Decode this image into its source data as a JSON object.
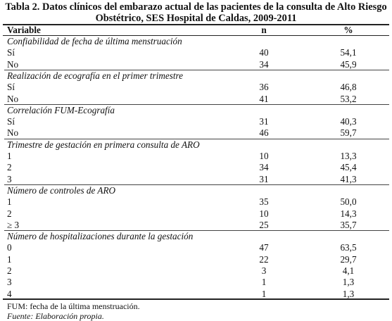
{
  "caption": {
    "line1": "Tabla 2. Datos clínicos del embarazo actual de las pacientes de la consulta de Alto Riesgo",
    "line2": "Obstétrico, SES Hospital de Caldas, 2009-2011"
  },
  "header": {
    "variable": "Variable",
    "n": "n",
    "pct": "%"
  },
  "sections": [
    {
      "title": "Confiabilidad de fecha de última menstruación",
      "rows": [
        {
          "label": "Sí",
          "n": "40",
          "pct": "54,1"
        },
        {
          "label": "No",
          "n": "34",
          "pct": "45,9"
        }
      ]
    },
    {
      "title": "Realización de ecografía en el primer trimestre",
      "rows": [
        {
          "label": "Sí",
          "n": "36",
          "pct": "46,8"
        },
        {
          "label": "No",
          "n": "41",
          "pct": "53,2"
        }
      ]
    },
    {
      "title": "Correlación FUM-Ecografía",
      "rows": [
        {
          "label": "Sí",
          "n": "31",
          "pct": "40,3"
        },
        {
          "label": "No",
          "n": "46",
          "pct": "59,7"
        }
      ]
    },
    {
      "title": "Trimestre de gestación en primera consulta de ARO",
      "rows": [
        {
          "label": "1",
          "n": "10",
          "pct": "13,3"
        },
        {
          "label": "2",
          "n": "34",
          "pct": "45,4"
        },
        {
          "label": "3",
          "n": "31",
          "pct": "41,3"
        }
      ]
    },
    {
      "title": "Número de controles de ARO",
      "rows": [
        {
          "label": "1",
          "n": "35",
          "pct": "50,0"
        },
        {
          "label": "2",
          "n": "10",
          "pct": "14,3"
        },
        {
          "label": "≥ 3",
          "n": "25",
          "pct": "35,7"
        }
      ]
    },
    {
      "title": "Número de hospitalizaciones durante la gestación",
      "rows": [
        {
          "label": "0",
          "n": "47",
          "pct": "63,5"
        },
        {
          "label": "1",
          "n": "22",
          "pct": "29,7"
        },
        {
          "label": "2",
          "n": "3",
          "pct": "4,1"
        },
        {
          "label": "3",
          "n": "1",
          "pct": "1,3"
        },
        {
          "label": "4",
          "n": "1",
          "pct": "1,3"
        }
      ]
    }
  ],
  "footnotes": {
    "abbrev": "FUM: fecha de la última menstruación.",
    "source": "Fuente: Elaboración propia."
  }
}
